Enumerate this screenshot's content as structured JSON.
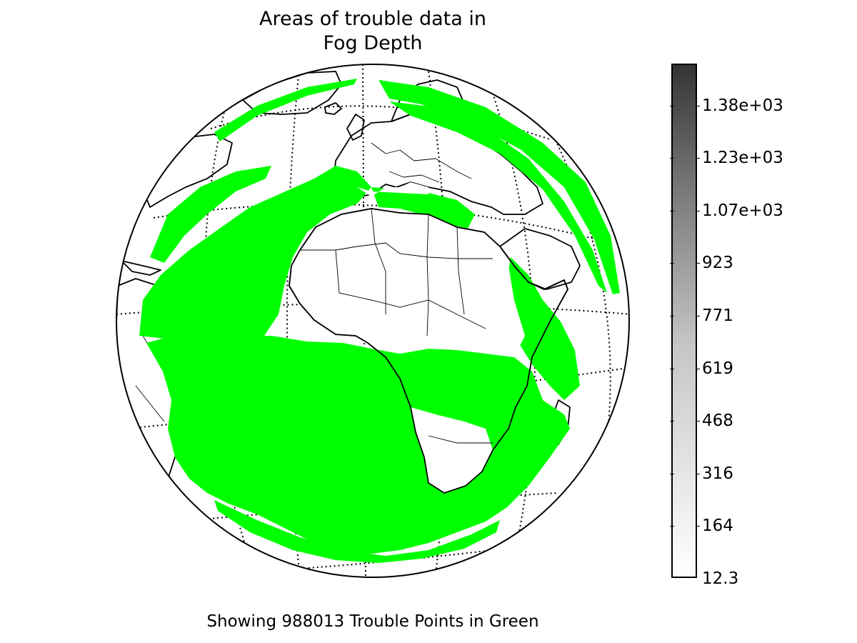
{
  "title_line1": "Areas of trouble data in",
  "title_line2": "Fog Depth",
  "caption": "Showing 988013 Trouble Points in Green",
  "trouble_point_count": 988013,
  "trouble_color": "#00ff00",
  "projection": "orthographic globe centered over Africa / Atlantic Ocean",
  "colorbar": {
    "ticks": [
      "1.38e+03",
      "1.23e+03",
      "1.07e+03",
      "923",
      "771",
      "619",
      "468",
      "316",
      "164",
      "12.3"
    ],
    "min_label": "12.3",
    "colormap": "greys",
    "low_color": "#ffffff",
    "high_color": "#343434"
  }
}
